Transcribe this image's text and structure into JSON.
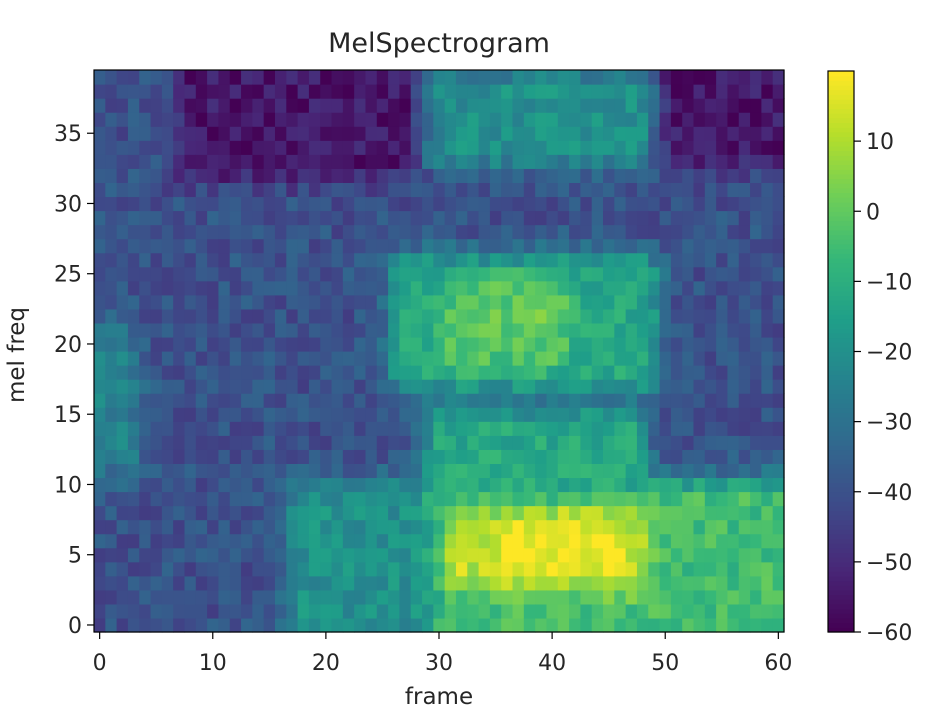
{
  "chart_data": {
    "type": "heatmap",
    "title": "MelSpectrogram",
    "xlabel": "frame",
    "ylabel": "mel freq",
    "colormap": "viridis",
    "x_range": [
      0,
      60
    ],
    "y_range": [
      0,
      39
    ],
    "xticks": [
      "0",
      "10",
      "20",
      "30",
      "40",
      "50",
      "60"
    ],
    "yticks": [
      "0",
      "5",
      "10",
      "15",
      "20",
      "25",
      "30",
      "35"
    ],
    "colorbar": {
      "range": [
        -60,
        20
      ],
      "ticks": [
        "10",
        "0",
        "−10",
        "−20",
        "−30",
        "−40",
        "−50",
        "−60"
      ]
    },
    "structure_description": "Energy blobs (dB): low-frequency band (bins 0-10) strong for frames 18-60 peaking ~+20 near frame 40 bin 6; mid band (bins 18-25) moderate for frames 27-48; upper rows (bins 34-39) dark around frames 8-30 and 52-60.",
    "regions": [
      {
        "frames": [
          0,
          60
        ],
        "bins": [
          0,
          39
        ],
        "level_db": -40
      },
      {
        "frames": [
          0,
          2
        ],
        "bins": [
          12,
          20
        ],
        "level_db": -25
      },
      {
        "frames": [
          18,
          30
        ],
        "bins": [
          0,
          9
        ],
        "level_db": -20
      },
      {
        "frames": [
          31,
          60
        ],
        "bins": [
          0,
          9
        ],
        "level_db": -5
      },
      {
        "frames": [
          32,
          47
        ],
        "bins": [
          4,
          8
        ],
        "level_db": 12
      },
      {
        "frames": [
          37,
          45
        ],
        "bins": [
          5,
          7
        ],
        "level_db": 19
      },
      {
        "frames": [
          30,
          47
        ],
        "bins": [
          10,
          14
        ],
        "level_db": -12
      },
      {
        "frames": [
          27,
          48
        ],
        "bins": [
          18,
          25
        ],
        "level_db": -12
      },
      {
        "frames": [
          32,
          40
        ],
        "bins": [
          20,
          23
        ],
        "level_db": 0
      },
      {
        "frames": [
          27,
          48
        ],
        "bins": [
          34,
          38
        ],
        "level_db": -20
      },
      {
        "frames": [
          8,
          27
        ],
        "bins": [
          33,
          39
        ],
        "level_db": -55
      },
      {
        "frames": [
          51,
          60
        ],
        "bins": [
          34,
          39
        ],
        "level_db": -55
      }
    ]
  }
}
